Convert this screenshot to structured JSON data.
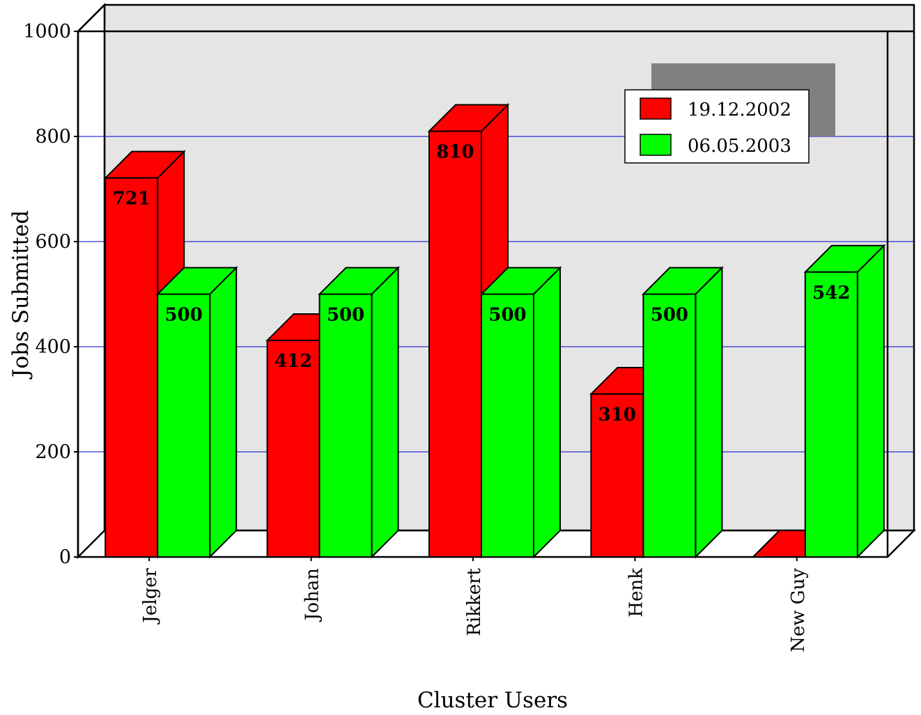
{
  "chart_data": {
    "type": "bar",
    "title": "",
    "xlabel": "Cluster Users",
    "ylabel": "Jobs Submitted",
    "ylim": [
      0,
      1000
    ],
    "yticks": [
      "0",
      "200",
      "400",
      "600",
      "800",
      "1000"
    ],
    "categories": [
      "Jelger",
      "Johan",
      "Rikkert",
      "Henk",
      "New Guy"
    ],
    "series": [
      {
        "name": "19.12.2002",
        "color": "#ff0000",
        "values": [
          721,
          412,
          810,
          310,
          0
        ],
        "labels": [
          "721",
          "412",
          "810",
          "310",
          ""
        ]
      },
      {
        "name": "06.05.2003",
        "color": "#00ff00",
        "values": [
          500,
          500,
          500,
          500,
          542
        ],
        "labels": [
          "500",
          "500",
          "500",
          "500",
          "542"
        ]
      }
    ],
    "grid": true,
    "grid_color": "#0000cc",
    "wall_color": "#e5e5e5",
    "legend_position": "top-right",
    "three_d": true
  }
}
